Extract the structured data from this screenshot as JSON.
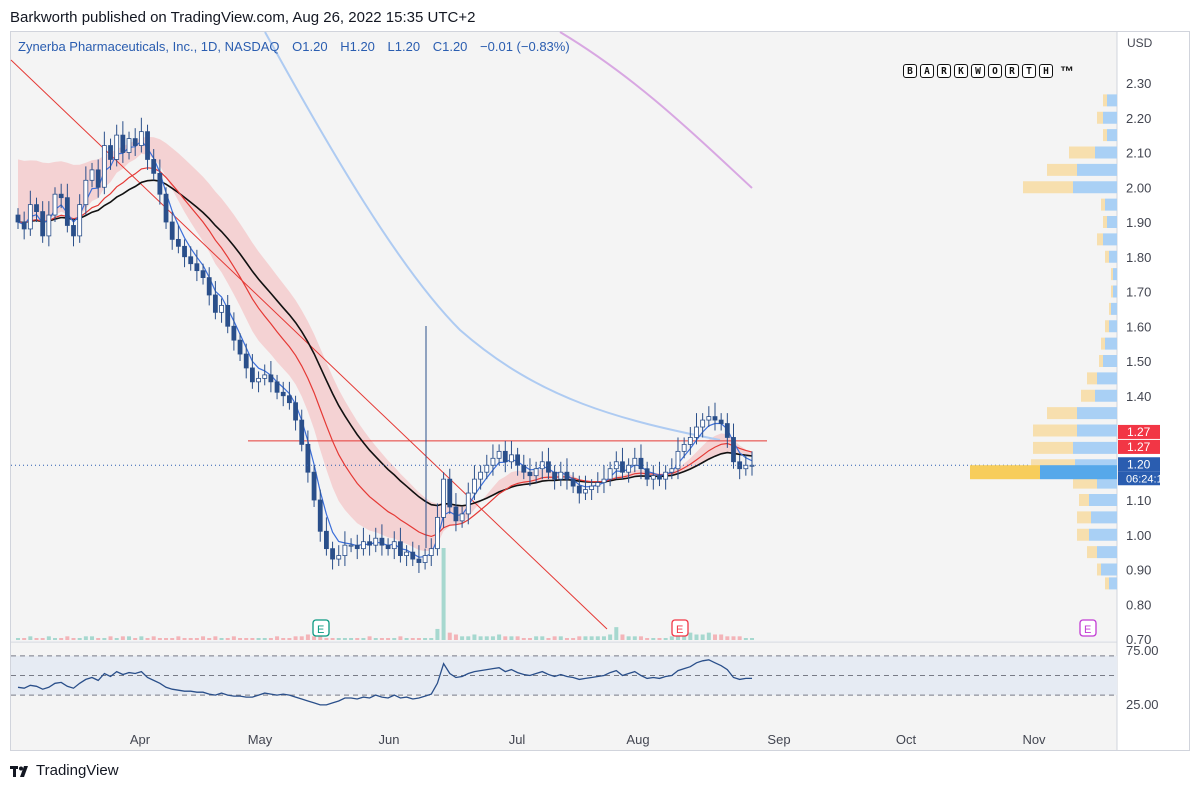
{
  "header": {
    "published": "Barkworth published on TradingView.com, Aug 26, 2022 15:35 UTC+2"
  },
  "legend": {
    "symbol": "Zynerba Pharmaceuticals, Inc., 1D, NASDAQ",
    "open": "O1.20",
    "high": "H1.20",
    "low": "L1.20",
    "close": "C1.20",
    "change": "−0.01 (−0.83%)"
  },
  "brand": {
    "letters": [
      "B",
      "A",
      "R",
      "K",
      "W",
      "O",
      "R",
      "T",
      "H"
    ],
    "tm": "™"
  },
  "footer": {
    "logo_text": "TradingView"
  },
  "chart_data": {
    "type": "candlestick",
    "currency": "USD",
    "price_ticks": [
      "2.30",
      "2.20",
      "2.10",
      "2.00",
      "1.90",
      "1.80",
      "1.70",
      "1.60",
      "1.50",
      "1.40",
      "1.10",
      "1.00",
      "0.90",
      "0.80",
      "0.70"
    ],
    "ylim": [
      0.7,
      2.38
    ],
    "x_labels": [
      "Apr",
      "May",
      "Jun",
      "Jul",
      "Aug",
      "Sep",
      "Oct",
      "Nov"
    ],
    "price_badges": [
      {
        "value": "1.27",
        "color": "#f23645"
      },
      {
        "value": "1.27",
        "color": "#f23645"
      },
      {
        "value": "1.20",
        "color": "#2a5db0"
      }
    ],
    "countdown": "06:24:16",
    "last_price": 1.2,
    "resistance_level": 1.27,
    "earnings_markers": [
      {
        "label": "E",
        "color": "#089981"
      },
      {
        "label": "E",
        "color": "#f23645"
      },
      {
        "label": "E",
        "color": "#c23bd4"
      }
    ],
    "rsi_ticks": [
      "75.00",
      "25.00"
    ],
    "rsi_bands": [
      70,
      50,
      30
    ],
    "colors": {
      "up": "#ffffff",
      "down": "#2a4f8a",
      "ema_fast": "#3c6fd9",
      "ema_mid": "#e53935",
      "band_fill": "#f4b6b8",
      "sma_black": "#111111",
      "sma_blue": "#aecbf2",
      "sma_purple": "#d8a7e2",
      "rsi_line": "#2a4f8a",
      "rsi_bg": "#e6ebf3",
      "vp_up": "#a9d0f5",
      "vp_down": "#f7dfae",
      "vp_poc_up": "#56a8ea",
      "vp_poc_down": "#f7cd5b"
    },
    "close_series": [
      1.9,
      1.88,
      1.95,
      1.93,
      1.86,
      1.92,
      1.98,
      1.97,
      1.89,
      1.86,
      1.95,
      2.02,
      2.05,
      2.0,
      2.12,
      2.08,
      2.15,
      2.1,
      2.14,
      2.12,
      2.16,
      2.08,
      2.04,
      1.98,
      1.9,
      1.85,
      1.83,
      1.8,
      1.78,
      1.76,
      1.74,
      1.69,
      1.64,
      1.66,
      1.6,
      1.56,
      1.52,
      1.48,
      1.44,
      1.45,
      1.46,
      1.44,
      1.41,
      1.4,
      1.38,
      1.33,
      1.26,
      1.18,
      1.1,
      1.01,
      0.96,
      0.93,
      0.94,
      0.97,
      0.97,
      0.96,
      0.98,
      0.97,
      0.99,
      0.97,
      0.96,
      0.98,
      0.94,
      0.95,
      0.93,
      0.92,
      0.94,
      0.96,
      1.05,
      1.16,
      1.08,
      1.04,
      1.06,
      1.12,
      1.16,
      1.18,
      1.2,
      1.22,
      1.24,
      1.21,
      1.23,
      1.2,
      1.18,
      1.17,
      1.19,
      1.21,
      1.18,
      1.16,
      1.18,
      1.16,
      1.14,
      1.12,
      1.13,
      1.14,
      1.15,
      1.16,
      1.19,
      1.21,
      1.18,
      1.2,
      1.22,
      1.19,
      1.16,
      1.17,
      1.16,
      1.18,
      1.19,
      1.24,
      1.26,
      1.28,
      1.31,
      1.33,
      1.34,
      1.33,
      1.32,
      1.28,
      1.21,
      1.19,
      1.2,
      1.2
    ],
    "volume_series": [
      1,
      1,
      2,
      1,
      1,
      2,
      1,
      1,
      2,
      1,
      1,
      2,
      2,
      1,
      1,
      2,
      1,
      2,
      2,
      1,
      2,
      1,
      2,
      1,
      1,
      1,
      2,
      1,
      1,
      1,
      2,
      1,
      2,
      1,
      1,
      2,
      1,
      1,
      1,
      1,
      1,
      1,
      2,
      1,
      1,
      2,
      2,
      3,
      2,
      2,
      1,
      1,
      1,
      1,
      1,
      1,
      1,
      2,
      1,
      1,
      1,
      1,
      2,
      1,
      1,
      1,
      1,
      1,
      6,
      50,
      4,
      3,
      2,
      2,
      3,
      2,
      2,
      2,
      3,
      2,
      2,
      2,
      1,
      1,
      2,
      2,
      1,
      2,
      2,
      1,
      1,
      2,
      2,
      2,
      2,
      2,
      3,
      7,
      3,
      2,
      2,
      2,
      1,
      1,
      1,
      1,
      2,
      3,
      4,
      4,
      3,
      3,
      4,
      3,
      3,
      2,
      2,
      2,
      1,
      1
    ],
    "rsi_series": [
      38,
      37,
      40,
      39,
      36,
      38,
      42,
      43,
      39,
      37,
      42,
      46,
      48,
      45,
      52,
      49,
      54,
      51,
      53,
      52,
      54,
      48,
      45,
      42,
      38,
      36,
      35,
      34,
      34,
      33,
      33,
      31,
      30,
      32,
      30,
      29,
      29,
      28,
      28,
      30,
      32,
      31,
      30,
      31,
      30,
      28,
      26,
      24,
      22,
      20,
      20,
      22,
      24,
      27,
      27,
      26,
      28,
      27,
      30,
      28,
      27,
      30,
      27,
      28,
      26,
      27,
      29,
      31,
      42,
      62,
      52,
      48,
      49,
      52,
      54,
      55,
      56,
      57,
      58,
      54,
      56,
      53,
      51,
      50,
      52,
      54,
      51,
      49,
      51,
      49,
      48,
      46,
      47,
      48,
      49,
      50,
      53,
      55,
      50,
      52,
      54,
      50,
      47,
      48,
      47,
      49,
      50,
      55,
      57,
      59,
      63,
      65,
      66,
      63,
      60,
      56,
      48,
      46,
      47,
      47
    ]
  }
}
